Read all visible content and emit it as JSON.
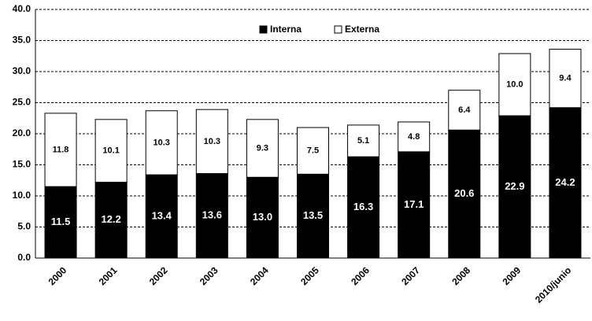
{
  "chart_data": {
    "type": "stacked_bar",
    "categories": [
      "2000",
      "2001",
      "2002",
      "2003",
      "2004",
      "2005",
      "2006",
      "2007",
      "2008",
      "2009",
      "2010/junio"
    ],
    "series": [
      {
        "name": "Interna",
        "color": "#000000",
        "values": [
          11.5,
          12.2,
          13.4,
          13.6,
          13.0,
          13.5,
          16.3,
          17.1,
          20.6,
          22.9,
          24.2
        ],
        "value_labels": [
          "11.5",
          "12.2",
          "13.4",
          "13.6",
          "13.0",
          "13.5",
          "16.3",
          "17.1",
          "20.6",
          "22.9",
          "24.2"
        ]
      },
      {
        "name": "Externa",
        "color": "#ffffff",
        "values": [
          11.8,
          10.1,
          10.3,
          10.3,
          9.3,
          7.5,
          5.1,
          4.8,
          6.4,
          10.0,
          9.4
        ],
        "value_labels": [
          "11.8",
          "10.1",
          "10.3",
          "10.3",
          "9.3",
          "7.5",
          "5.1",
          "4.8",
          "6.4",
          "10.0",
          "9.4"
        ]
      }
    ],
    "ylim": [
      0,
      40
    ],
    "yticks": [
      {
        "value": 0,
        "label": "0.0"
      },
      {
        "value": 5,
        "label": "5.0"
      },
      {
        "value": 10,
        "label": "10.0"
      },
      {
        "value": 15,
        "label": "15.0"
      },
      {
        "value": 20,
        "label": "20.0"
      },
      {
        "value": 25,
        "label": "25.0"
      },
      {
        "value": 30,
        "label": "30.0"
      },
      {
        "value": 35,
        "label": "35.0"
      },
      {
        "value": 40,
        "label": "40.0"
      }
    ],
    "grid": true,
    "legend": "top"
  }
}
